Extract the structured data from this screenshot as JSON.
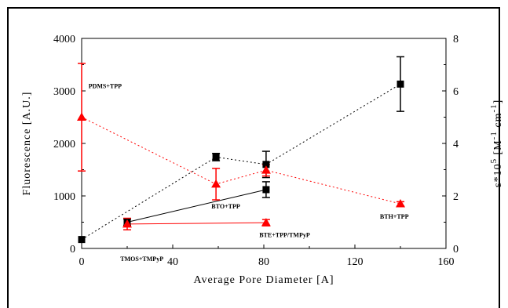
{
  "chart_data": {
    "type": "scatter",
    "xlabel": "Average Pore Diameter [A]",
    "ylabel_left": "Fluorescence [A.U.]",
    "ylabel_right_parts": [
      "ε*10",
      "5",
      " [M",
      "-1",
      " cm",
      "-1",
      "]"
    ],
    "xlim": [
      0,
      160
    ],
    "ylim_left": [
      0,
      4000
    ],
    "ylim_right": [
      0,
      8
    ],
    "x_ticks": [
      0,
      40,
      80,
      120,
      160
    ],
    "y_left_ticks": [
      0,
      1000,
      2000,
      3000,
      4000
    ],
    "y_right_ticks": [
      0,
      2,
      4,
      6,
      8
    ],
    "series": [
      {
        "id": "black-dotted",
        "axis": "left",
        "color": "#000000",
        "marker": "square",
        "line": "dotted",
        "points": [
          {
            "x": 0,
            "y": 170,
            "err": 0
          },
          {
            "x": 59,
            "y": 1740,
            "err": 70
          },
          {
            "x": 81,
            "y": 1600,
            "err": 250
          },
          {
            "x": 140,
            "y": 3130,
            "err": 520
          }
        ]
      },
      {
        "id": "black-solid",
        "axis": "left",
        "color": "#000000",
        "marker": "square",
        "line": "solid",
        "points": [
          {
            "x": 20,
            "y": 500,
            "err": 60
          },
          {
            "x": 81,
            "y": 1120,
            "err": 150
          }
        ]
      },
      {
        "id": "red-dotted",
        "axis": "right",
        "color": "#ff0000",
        "marker": "triangle",
        "line": "dotted",
        "points": [
          {
            "x": 0,
            "y": 5.0,
            "err": 2.05
          },
          {
            "x": 59,
            "y": 2.45,
            "err": 0.6
          },
          {
            "x": 81,
            "y": 2.98,
            "err": 0.22
          },
          {
            "x": 140,
            "y": 1.7,
            "err": 0.08
          }
        ]
      },
      {
        "id": "red-solid",
        "axis": "right",
        "color": "#ff0000",
        "marker": "triangle",
        "line": "solid",
        "points": [
          {
            "x": 20,
            "y": 0.93,
            "err": 0.22
          },
          {
            "x": 81,
            "y": 0.98,
            "err": 0.12
          }
        ]
      }
    ],
    "annotations": [
      {
        "text": "PDMS+TPP",
        "x": 3,
        "y": 3050
      },
      {
        "text": "BTO+TPP",
        "x": 57,
        "y": 760
      },
      {
        "text": "TMOS+TMPyP",
        "x": 17,
        "y": -240
      },
      {
        "text": "BTE+TPP/TMPyP",
        "x": 78,
        "y": 220
      },
      {
        "text": "BTH+TPP",
        "x": 131,
        "y": 570
      }
    ]
  }
}
